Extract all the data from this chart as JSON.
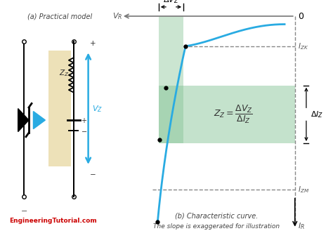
{
  "bg_color": "#ffffff",
  "circuit_box_color": "#e8d8a0",
  "label_a": "(a) Practical model",
  "label_b": "(b) Characteristic curve.",
  "label_b2": "The slope is exaggerated for illustration",
  "website": "EngineeringTutorial.com",
  "website_color": "#cc0000",
  "curve_color": "#29abe2",
  "green_fill_color": "#7dbf8e",
  "dashed_color": "#888888",
  "vr_label": "$V_R$",
  "izk_label": "$I_{ZK}$",
  "izm_label": "$I_{ZM}$",
  "diz_label": "$\\Delta I_Z$",
  "dvz_label": "$\\Delta V_Z$",
  "ir_label": "$I_R$",
  "formula_label": "$Z_Z = \\dfrac{\\Delta V_Z}{\\Delta I_Z}$"
}
